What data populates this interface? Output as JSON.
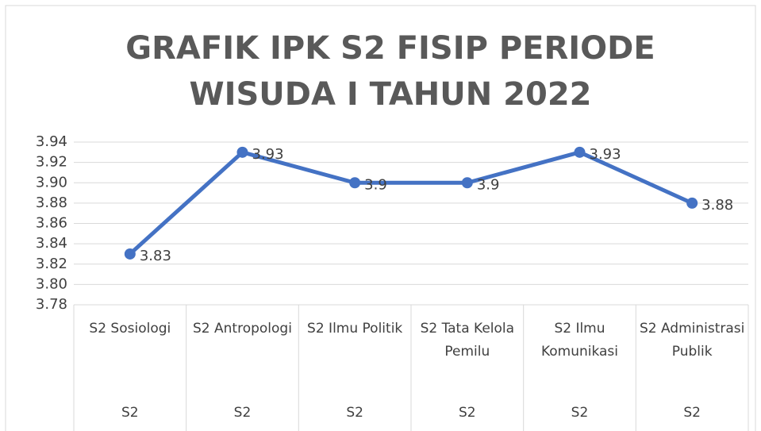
{
  "chart_data": {
    "type": "line",
    "title": [
      "GRAFIK IPK S2 FISIP PERIODE",
      "WISUDA I TAHUN 2022"
    ],
    "categories": [
      "S2 Sosiologi",
      "S2 Antropologi",
      "S2 Ilmu Politik",
      "S2 Tata Kelola Pemilu",
      "S2 Ilmu Komunikasi",
      "S2 Administrasi Publik"
    ],
    "groups": [
      "S2",
      "S2",
      "S2",
      "S2",
      "S2",
      "S2"
    ],
    "series": [
      {
        "name": "IPK",
        "color": "#4472c4",
        "values": [
          3.83,
          3.93,
          3.9,
          3.9,
          3.93,
          3.88
        ]
      }
    ],
    "ylim": [
      3.78,
      3.94
    ],
    "yticks": [
      3.78,
      {
        "value": 3.8,
        "label": "3.80"
      },
      3.82,
      3.84,
      3.86,
      3.88,
      {
        "value": 3.9,
        "label": "3.90"
      },
      3.92,
      3.94
    ],
    "grid": true
  }
}
